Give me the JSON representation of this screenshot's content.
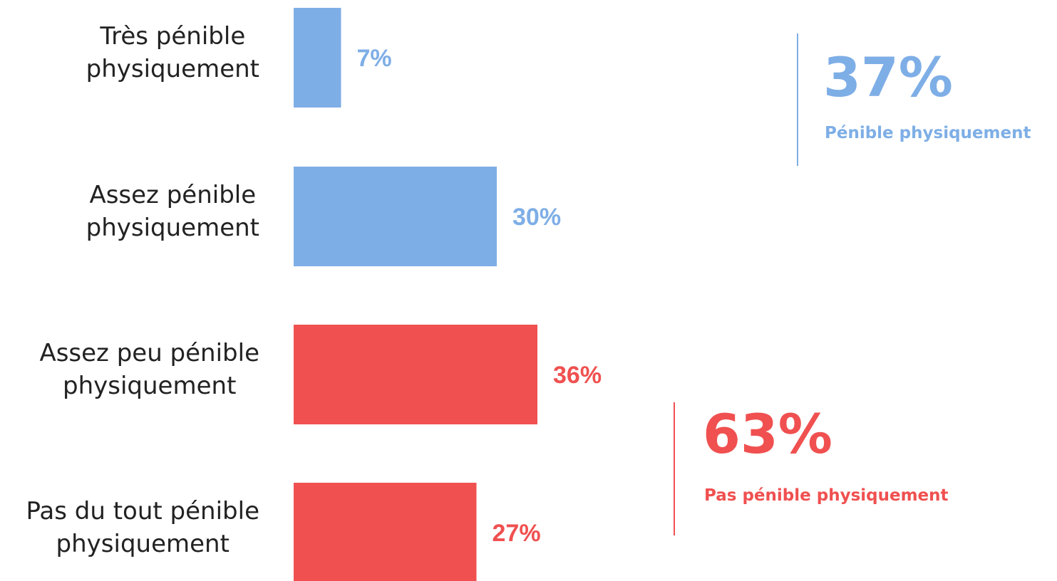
{
  "colors": {
    "blue": "#7eaee6",
    "red": "#f05050",
    "text": "#222222"
  },
  "chart_data": {
    "type": "bar",
    "orientation": "horizontal",
    "categories": [
      [
        "Très pénible",
        "physiquement"
      ],
      [
        "Assez pénible",
        "physiquement"
      ],
      [
        "Assez peu pénible",
        "physiquement"
      ],
      [
        "Pas du tout pénible",
        "physiquement"
      ]
    ],
    "values": [
      7,
      30,
      36,
      27
    ],
    "value_labels": [
      "7%",
      "30%",
      "36%",
      "27%"
    ],
    "bar_colors": [
      "blue",
      "blue",
      "red",
      "red"
    ],
    "xlim": [
      0,
      100
    ],
    "grid": false,
    "legend": "none"
  },
  "summaries": [
    {
      "value": "37%",
      "caption": "Pénible physiquement",
      "color": "blue"
    },
    {
      "value": "63%",
      "caption": "Pas pénible physiquement",
      "color": "red"
    }
  ]
}
